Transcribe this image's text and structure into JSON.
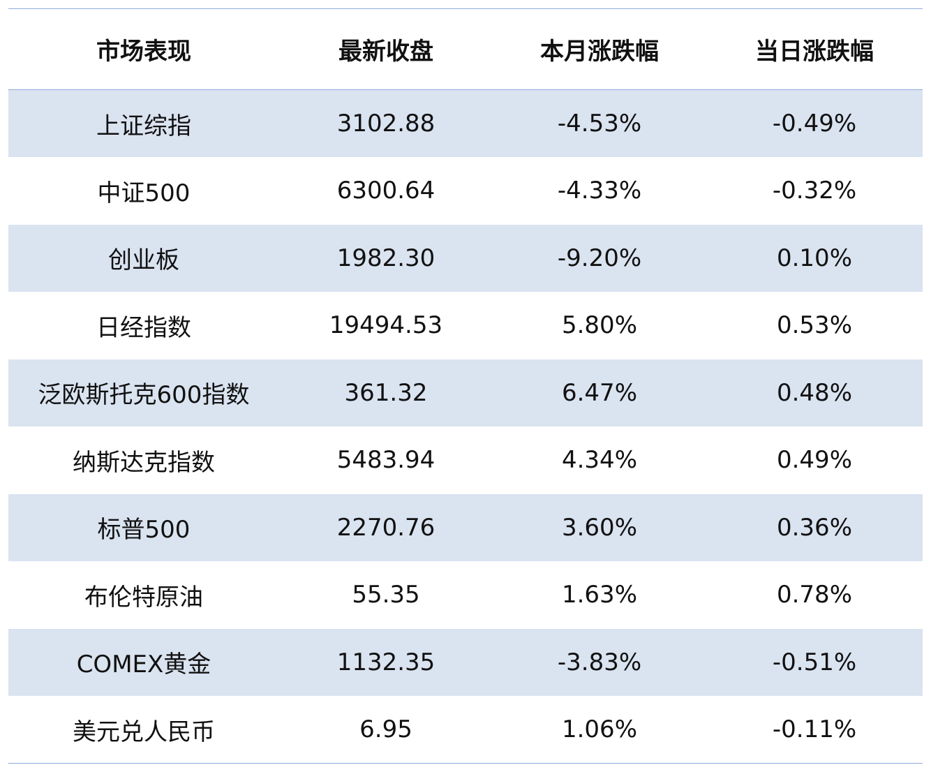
{
  "table": {
    "headers": [
      "市场表现",
      "最新收盘",
      "本月涨跌幅",
      "当日涨跌幅"
    ],
    "rows": [
      [
        "上证综指",
        "3102.88",
        "-4.53%",
        "-0.49%"
      ],
      [
        "中证500",
        "6300.64",
        "-4.33%",
        "-0.32%"
      ],
      [
        "创业板",
        "1982.30",
        "-9.20%",
        "0.10%"
      ],
      [
        "日经指数",
        "19494.53",
        "5.80%",
        "0.53%"
      ],
      [
        "泛欧斯托克600指数",
        "361.32",
        "6.47%",
        "0.48%"
      ],
      [
        "纳斯达克指数",
        "5483.94",
        "4.34%",
        "0.49%"
      ],
      [
        "标普500",
        "2270.76",
        "3.60%",
        "0.36%"
      ],
      [
        "布伦特原油",
        "55.35",
        "1.63%",
        "0.78%"
      ],
      [
        "COMEX黄金",
        "1132.35",
        "-3.83%",
        "-0.51%"
      ],
      [
        "美元兑人民币",
        "6.95",
        "1.06%",
        "-0.11%"
      ]
    ]
  },
  "colors": {
    "header_border": "#8eaadb",
    "band_fill": "#dae3f0",
    "text": "#111111"
  }
}
